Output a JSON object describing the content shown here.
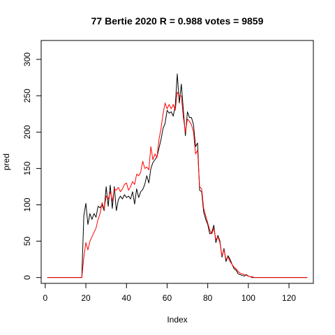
{
  "chart_data": {
    "type": "line",
    "title": "77 Bertie 2020 R = 0.988 votes = 9859",
    "xlabel": "Index",
    "ylabel": "pred",
    "xlim": [
      -2,
      132
    ],
    "ylim": [
      -8,
      326
    ],
    "x_ticks": [
      0,
      20,
      40,
      60,
      80,
      100,
      120
    ],
    "y_ticks": [
      0,
      50,
      100,
      150,
      200,
      250,
      300
    ],
    "grid": false,
    "legend": "none",
    "series": [
      {
        "color": "#000000",
        "values": [
          0,
          0,
          0,
          0,
          0,
          0,
          0,
          0,
          0,
          0,
          0,
          0,
          0,
          0,
          0,
          0,
          0,
          0,
          85,
          102,
          73,
          88,
          80,
          88,
          83,
          98,
          96,
          100,
          92,
          125,
          98,
          127,
          95,
          125,
          92,
          107,
          112,
          108,
          114,
          110,
          112,
          108,
          118,
          101,
          122,
          110,
          118,
          121,
          128,
          140,
          130,
          150,
          158,
          162,
          166,
          178,
          190,
          205,
          212,
          230,
          226,
          228,
          222,
          236,
          280,
          240,
          266,
          230,
          195,
          228,
          220,
          220,
          210,
          180,
          185,
          120,
          118,
          90,
          80,
          73,
          60,
          62,
          72,
          48,
          58,
          50,
          28,
          40,
          22,
          30,
          25,
          18,
          12,
          10,
          5,
          4,
          3,
          2,
          4,
          2,
          1,
          0,
          0,
          0,
          0,
          0,
          0,
          0,
          0,
          0,
          0,
          0,
          0,
          0,
          0,
          0,
          0,
          0,
          0,
          0,
          0,
          0,
          0,
          0,
          0,
          0,
          0,
          0,
          0
        ]
      },
      {
        "color": "#ff0000",
        "values": [
          0,
          0,
          0,
          0,
          0,
          0,
          0,
          0,
          0,
          0,
          0,
          0,
          0,
          0,
          0,
          0,
          0,
          0,
          28,
          48,
          38,
          50,
          56,
          62,
          68,
          80,
          88,
          103,
          94,
          112,
          108,
          118,
          105,
          122,
          120,
          124,
          118,
          122,
          128,
          130,
          120,
          125,
          132,
          128,
          142,
          140,
          145,
          160,
          150,
          152,
          148,
          180,
          162,
          170,
          165,
          190,
          205,
          225,
          240,
          232,
          238,
          232,
          238,
          230,
          255,
          250,
          250,
          220,
          200,
          218,
          215,
          210,
          200,
          170,
          175,
          125,
          122,
          95,
          85,
          75,
          65,
          60,
          68,
          52,
          56,
          48,
          30,
          38,
          25,
          28,
          22,
          18,
          14,
          12,
          8,
          6,
          5,
          4,
          3,
          2,
          1,
          1,
          0,
          0,
          0,
          0,
          0,
          0,
          0,
          0,
          0,
          0,
          0,
          0,
          0,
          0,
          0,
          0,
          0,
          0,
          0,
          0,
          0,
          0,
          0,
          0,
          0,
          0,
          0
        ]
      }
    ]
  }
}
